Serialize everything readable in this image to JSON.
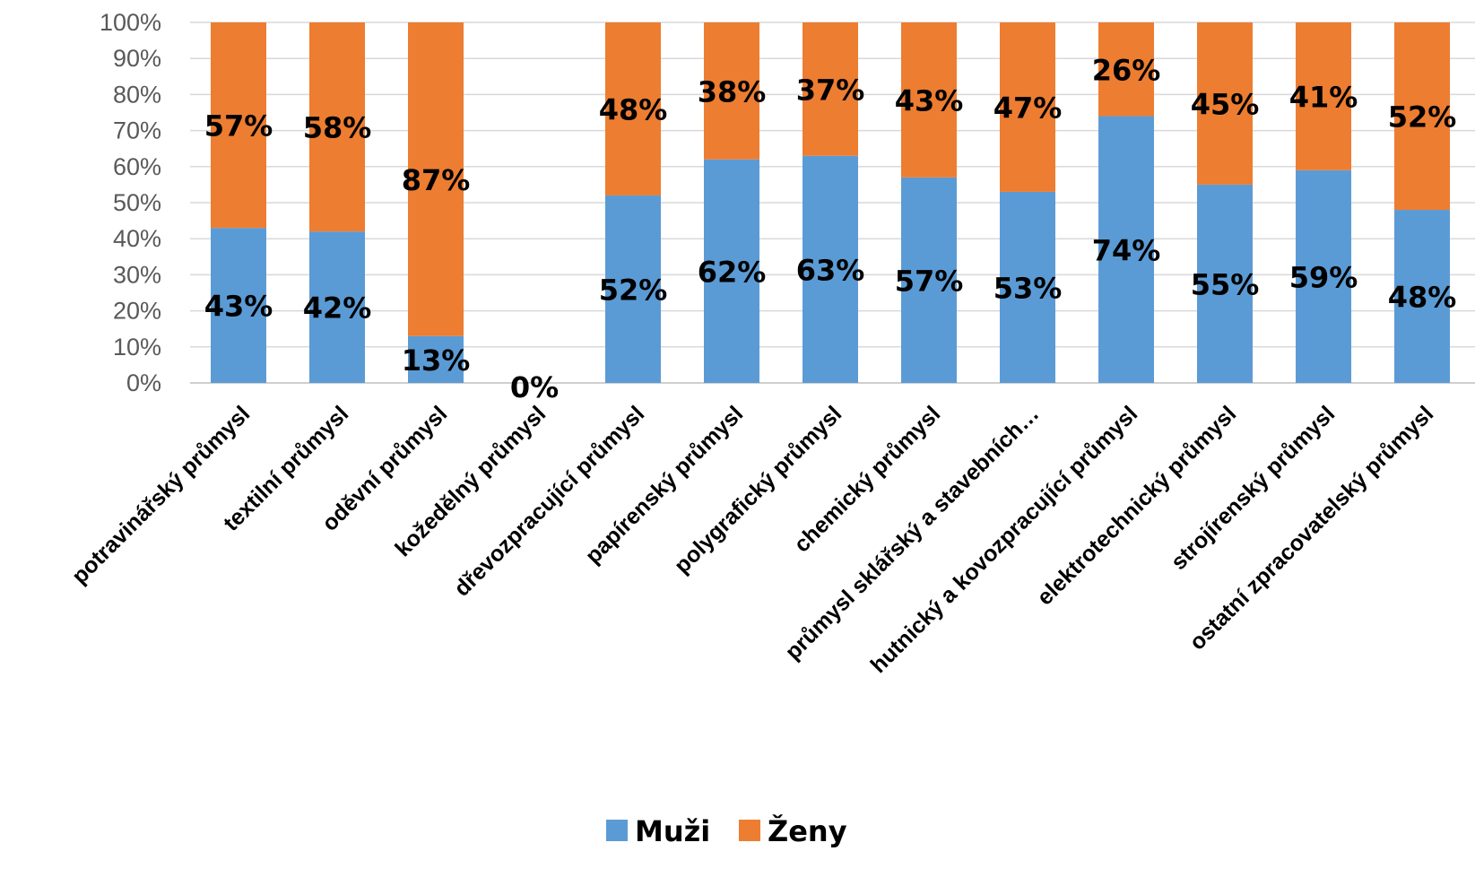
{
  "chart_data": {
    "type": "bar",
    "stacked": true,
    "categories": [
      "potravinářský průmysl",
      "textilní průmysl",
      "oděvní průmysl",
      "kožedělný průmysl",
      "dřevozpracující průmysl",
      "papírenský průmysl",
      "polygrafický průmysl",
      "chemický průmysl",
      "průmysl sklářský a stavebních…",
      "hutnický a kovozpracující průmysl",
      "elektrotechnický průmysl",
      "strojírenský průmysl",
      "ostatní zpracovatelský průmysl"
    ],
    "series": [
      {
        "name": "Muži",
        "color": "#5B9BD5",
        "values": [
          43,
          42,
          13,
          0,
          52,
          62,
          63,
          57,
          53,
          74,
          55,
          59,
          48
        ],
        "labels": [
          "43%",
          "42%",
          "13%",
          "0%",
          "52%",
          "62%",
          "63%",
          "57%",
          "53%",
          "74%",
          "55%",
          "59%",
          "48%"
        ]
      },
      {
        "name": "Ženy",
        "color": "#ED7D31",
        "values": [
          57,
          58,
          87,
          0,
          48,
          38,
          37,
          43,
          47,
          26,
          45,
          41,
          52
        ],
        "labels": [
          "57%",
          "58%",
          "87%",
          "",
          "48%",
          "38%",
          "37%",
          "43%",
          "47%",
          "26%",
          "45%",
          "41%",
          "52%"
        ]
      }
    ],
    "y_ticks": [
      "0%",
      "10%",
      "20%",
      "30%",
      "40%",
      "50%",
      "60%",
      "70%",
      "80%",
      "90%",
      "100%"
    ],
    "ylim": [
      0,
      100
    ],
    "grid": true,
    "legend": "bottom-center"
  }
}
